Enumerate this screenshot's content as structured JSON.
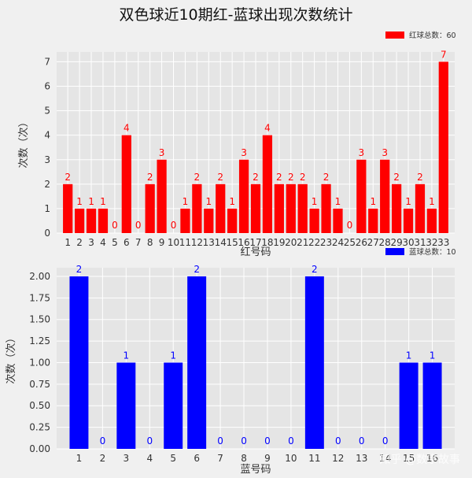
{
  "title": "双色球近10期红-蓝球出现次数统计",
  "watermark": "知乎 @数字故事",
  "chart_data": [
    {
      "type": "bar",
      "color": "#ff0000",
      "categories": [
        "1",
        "2",
        "3",
        "4",
        "5",
        "6",
        "7",
        "8",
        "9",
        "10",
        "11",
        "12",
        "13",
        "14",
        "15",
        "16",
        "17",
        "18",
        "19",
        "20",
        "21",
        "22",
        "23",
        "24",
        "25",
        "26",
        "27",
        "28",
        "29",
        "30",
        "31",
        "32",
        "33"
      ],
      "values": [
        2,
        1,
        1,
        1,
        0,
        4,
        0,
        2,
        3,
        0,
        1,
        2,
        1,
        2,
        1,
        3,
        2,
        4,
        2,
        2,
        2,
        1,
        2,
        1,
        0,
        3,
        1,
        3,
        2,
        1,
        2,
        1,
        7
      ],
      "xlabel": "红号码",
      "ylabel": "次数（次）",
      "ylim": [
        0,
        7.4
      ],
      "yticks": [
        "0",
        "1",
        "2",
        "3",
        "4",
        "5",
        "6",
        "7"
      ],
      "ytick_values": [
        0,
        1,
        2,
        3,
        4,
        5,
        6,
        7
      ],
      "legend": "红球总数：60",
      "legend_position": "top-right",
      "grid": true
    },
    {
      "type": "bar",
      "color": "#0000ff",
      "categories": [
        "1",
        "2",
        "3",
        "4",
        "5",
        "6",
        "7",
        "8",
        "9",
        "10",
        "11",
        "12",
        "13",
        "14",
        "15",
        "16"
      ],
      "values": [
        2,
        0,
        1,
        0,
        1,
        2,
        0,
        0,
        0,
        0,
        2,
        0,
        0,
        0,
        1,
        1
      ],
      "xlabel": "蓝号码",
      "ylabel": "次数（次）",
      "ylim": [
        0,
        2.1
      ],
      "yticks": [
        "0.00",
        "0.25",
        "0.50",
        "0.75",
        "1.00",
        "1.25",
        "1.50",
        "1.75",
        "2.00"
      ],
      "ytick_values": [
        0,
        0.25,
        0.5,
        0.75,
        1,
        1.25,
        1.5,
        1.75,
        2
      ],
      "legend": "蓝球总数：10",
      "legend_position": "top-right",
      "grid": true
    }
  ]
}
